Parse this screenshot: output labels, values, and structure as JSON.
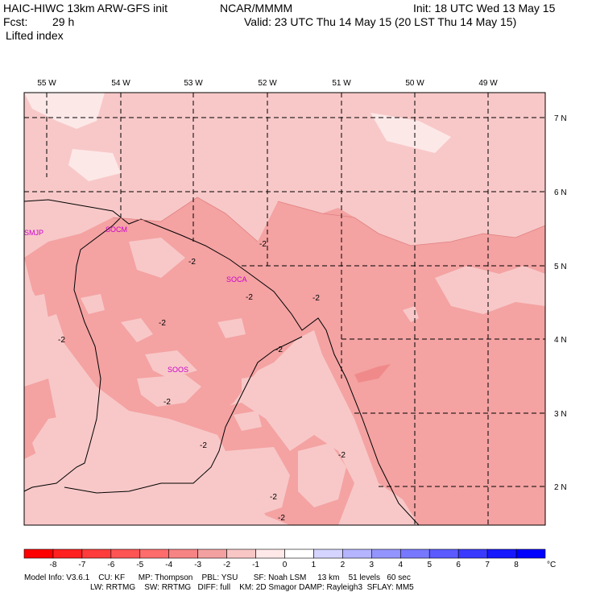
{
  "header": {
    "model_line": "HAIC-HIWC 13km ARW-GFS init",
    "org": "NCAR/MMMM",
    "init": "Init: 18 UTC Wed 13 May 15",
    "fcst_label": "Fcst:",
    "fcst_value": "29 h",
    "valid": "Valid: 23 UTC Thu 14 May 15 (20 LST Thu 14 May 15)",
    "field": "Lifted index"
  },
  "map": {
    "lon_labels": [
      "55 W",
      "54 W",
      "53 W",
      "52 W",
      "51 W",
      "50 W",
      "49 W"
    ],
    "lat_labels": [
      "7 N",
      "6 N",
      "5 N",
      "4 N",
      "3 N",
      "2 N"
    ],
    "stations": [
      "SMJP",
      "SOCM",
      "SOCA",
      "SOOS"
    ],
    "contour_label": "-2"
  },
  "colorbar": {
    "ticks": [
      "-8",
      "-7",
      "-6",
      "-5",
      "-4",
      "-3",
      "-2",
      "-1",
      "0",
      "1",
      "2",
      "3",
      "4",
      "5",
      "6",
      "7",
      "8"
    ],
    "unit": "°C",
    "colors": [
      "#ff0000",
      "#ff2020",
      "#ff3c3c",
      "#ff5454",
      "#ff6c6c",
      "#f78484",
      "#f3a0a0",
      "#f9c6c6",
      "#ffe8e8",
      "#ffffff",
      "#d4d4ff",
      "#b4b4ff",
      "#9494ff",
      "#7878ff",
      "#5a5aff",
      "#3a3aff",
      "#1818ff",
      "#0000ff"
    ]
  },
  "footer": {
    "line1": "Model Info: V3.6.1    CU: KF      MP: Thompson    PBL: YSU       SF: Noah LSM     13 km    51 levels   60 sec",
    "line2": "LW: RRTMG    SW: RRTMG   DIFF: full    KM: 2D Smagor DAMP: Rayleigh3  SFLAY: MM5"
  }
}
